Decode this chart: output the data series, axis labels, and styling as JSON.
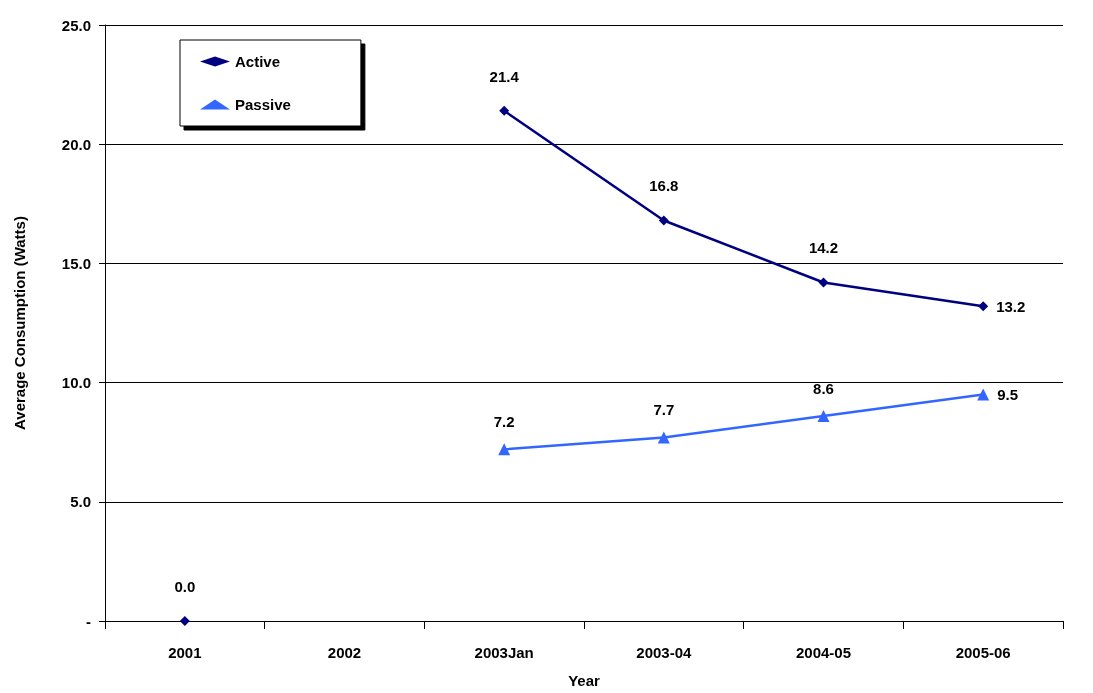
{
  "chart_data": {
    "type": "line",
    "xlabel": "Year",
    "ylabel": "Average Consumption (Watts)",
    "categories": [
      "2001",
      "2002",
      "2003Jan",
      "2003-04",
      "2004-05",
      "2005-06"
    ],
    "series": [
      {
        "name": "Active",
        "color": "#000080",
        "marker": "diamond",
        "values": [
          0,
          null,
          21.4,
          16.8,
          14.2,
          13.2
        ],
        "value_labels": [
          "0.0",
          null,
          "21.4",
          "16.8",
          "14.2",
          "13.2"
        ]
      },
      {
        "name": "Passive",
        "color": "#3366ff",
        "marker": "triangle",
        "values": [
          null,
          null,
          7.2,
          7.7,
          8.6,
          9.5
        ],
        "value_labels": [
          null,
          null,
          "7.2",
          "7.7",
          "8.6",
          "9.5"
        ]
      }
    ],
    "ylim": [
      0,
      25
    ],
    "yticks": [
      {
        "value": 0,
        "label": "-"
      },
      {
        "value": 5,
        "label": "5.0"
      },
      {
        "value": 10,
        "label": "10.0"
      },
      {
        "value": 15,
        "label": "15.0"
      },
      {
        "value": 20,
        "label": "20.0"
      },
      {
        "value": 25,
        "label": "25.0"
      }
    ],
    "grid": "y",
    "legend": "top left",
    "line_style": "solid"
  }
}
